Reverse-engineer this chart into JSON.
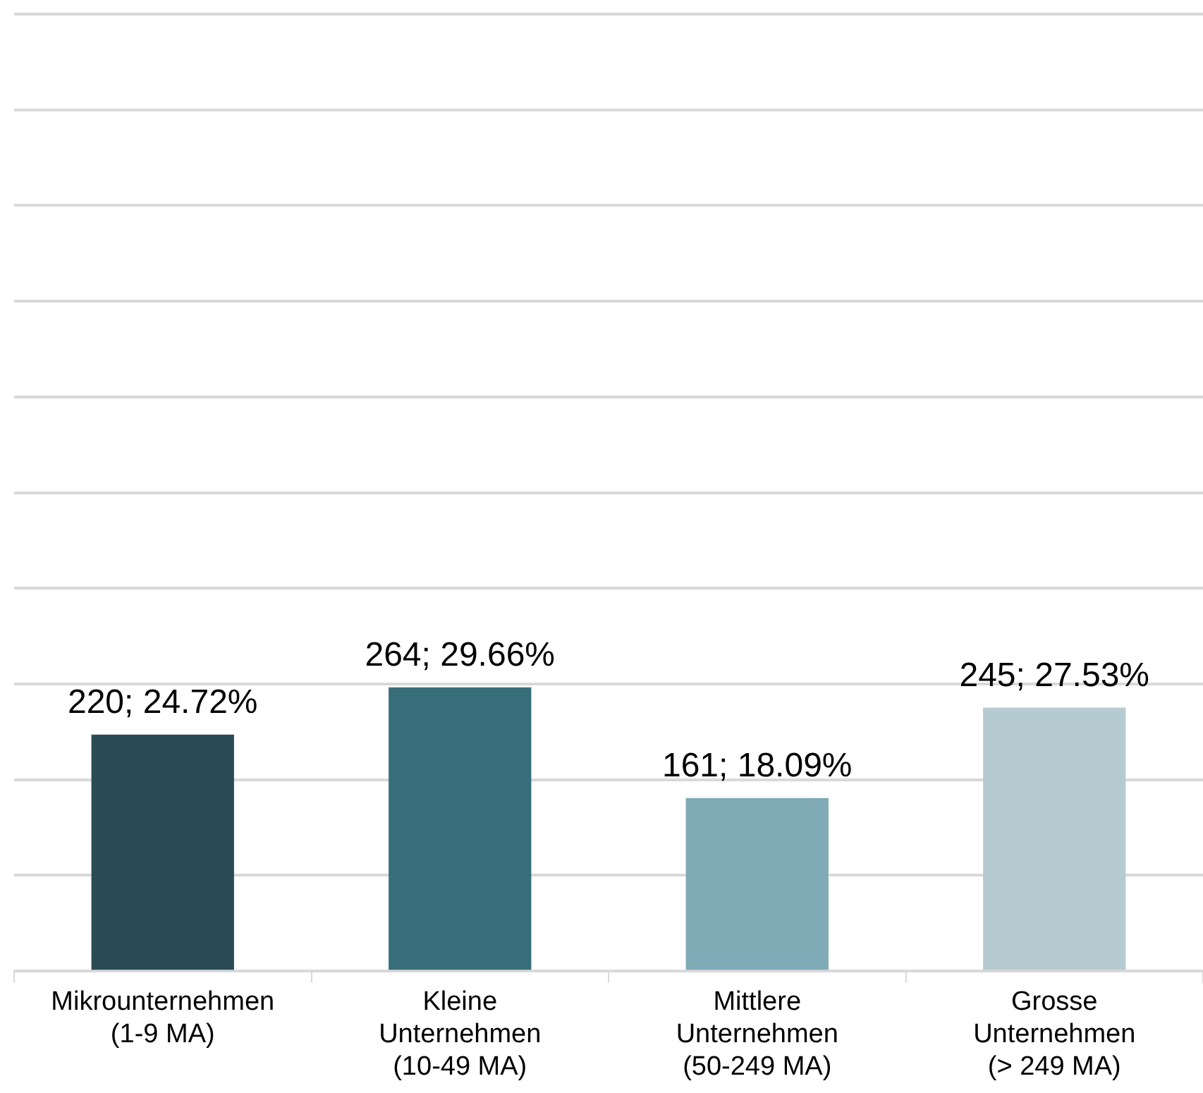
{
  "chart_data": {
    "type": "bar",
    "categories": [
      "Mikrounternehmen (1-9 MA)",
      "Kleine Unternehmen (10-49 MA)",
      "Mittlere Unternehmen (50-249 MA)",
      "Grosse Unternehmen (> 249 MA)"
    ],
    "values": [
      24.72,
      29.66,
      18.09,
      27.53
    ],
    "colors": [
      "#2a4b53",
      "#386e7a",
      "#7faab6",
      "#b6cbd1"
    ],
    "value_labels": [
      "220; 24.72%",
      "264; 29.66%",
      "161; 18.09%",
      "245; 27.53%"
    ],
    "ylim": [
      0,
      100
    ],
    "yticks": [
      0,
      10,
      20,
      30,
      40,
      50,
      60,
      70,
      80,
      90
    ],
    "grid": "y",
    "tick_labels": "x",
    "legend": false
  }
}
